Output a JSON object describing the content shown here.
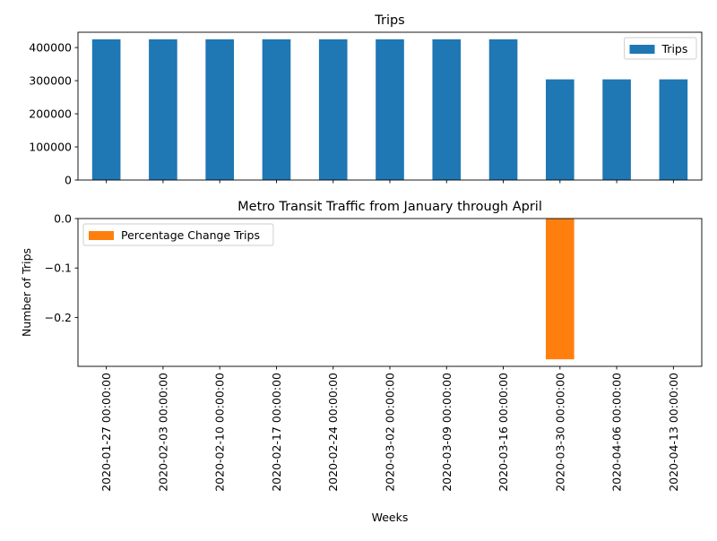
{
  "chart_data": [
    {
      "type": "bar",
      "title": "Trips",
      "xlabel": "",
      "ylabel": "",
      "categories": [
        "2020-01-27 00:00:00",
        "2020-02-03 00:00:00",
        "2020-02-10 00:00:00",
        "2020-02-17 00:00:00",
        "2020-02-24 00:00:00",
        "2020-03-02 00:00:00",
        "2020-03-09 00:00:00",
        "2020-03-16 00:00:00",
        "2020-03-30 00:00:00",
        "2020-04-06 00:00:00",
        "2020-04-13 00:00:00"
      ],
      "series": [
        {
          "name": "Trips",
          "color": "#1f77b4",
          "values": [
            425000,
            425000,
            425000,
            425000,
            425000,
            425000,
            425000,
            425000,
            304000,
            304000,
            304000
          ]
        }
      ],
      "ylim": [
        0,
        446250
      ],
      "yticks": [
        0,
        100000,
        200000,
        300000,
        400000
      ],
      "ytick_labels": [
        "0",
        "100000",
        "200000",
        "300000",
        "400000"
      ],
      "show_xtick_labels": false,
      "grid": false,
      "legend": "top-right"
    },
    {
      "type": "bar",
      "title": "Metro Transit Traffic from January through April",
      "xlabel": "Weeks",
      "ylabel": "Number of Trips",
      "categories": [
        "2020-01-27 00:00:00",
        "2020-02-03 00:00:00",
        "2020-02-10 00:00:00",
        "2020-02-17 00:00:00",
        "2020-02-24 00:00:00",
        "2020-03-02 00:00:00",
        "2020-03-09 00:00:00",
        "2020-03-16 00:00:00",
        "2020-03-30 00:00:00",
        "2020-04-06 00:00:00",
        "2020-04-13 00:00:00"
      ],
      "series": [
        {
          "name": "Percentage Change Trips",
          "color": "#ff7f0e",
          "values": [
            0,
            0,
            0,
            0,
            0,
            0,
            0,
            0,
            -0.2847,
            0,
            0
          ]
        }
      ],
      "ylim": [
        -0.2989,
        0
      ],
      "yticks": [
        0.0,
        -0.1,
        -0.2
      ],
      "ytick_labels": [
        "0.0",
        "−0.1",
        "−0.2"
      ],
      "show_xtick_labels": true,
      "grid": false,
      "legend": "top-left"
    }
  ]
}
